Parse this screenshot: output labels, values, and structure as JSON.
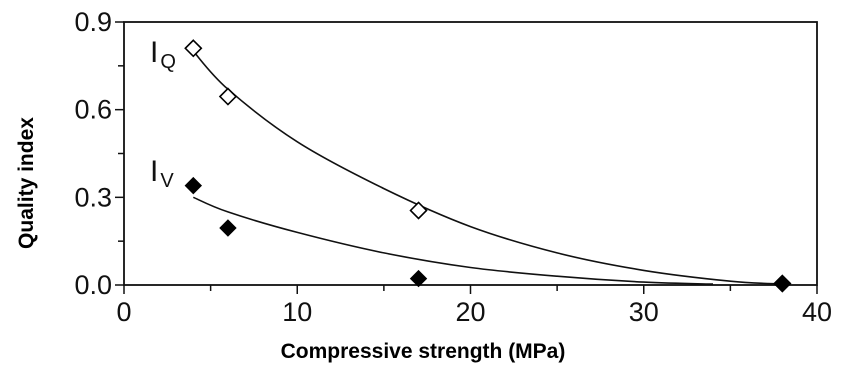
{
  "chart_data": {
    "type": "scatter",
    "title": "",
    "xlabel": "Compressive strength (MPa)",
    "ylabel": "Quality index",
    "xlim": [
      0,
      40
    ],
    "ylim": [
      0,
      0.9
    ],
    "xticks": [
      0,
      10,
      20,
      30,
      40
    ],
    "xtick_labels": [
      "0",
      "10",
      "20",
      "30",
      "40"
    ],
    "yticks": [
      0,
      0.3,
      0.6,
      0.9
    ],
    "ytick_labels": [
      "0.0",
      "0.3",
      "0.6",
      "0.9"
    ],
    "grid": false,
    "series": [
      {
        "label_main": "I",
        "label_sub": "Q",
        "marker": "open-diamond",
        "x": [
          4,
          6,
          17,
          38
        ],
        "y": [
          0.81,
          0.645,
          0.255,
          0.005
        ],
        "trend_x": [
          4,
          6,
          10,
          15,
          20,
          25,
          30,
          35,
          38
        ],
        "trend_y": [
          0.8,
          0.67,
          0.49,
          0.33,
          0.2,
          0.11,
          0.05,
          0.013,
          0.003
        ]
      },
      {
        "label_main": "I",
        "label_sub": "V",
        "marker": "filled-diamond",
        "x": [
          4,
          6,
          17,
          38
        ],
        "y": [
          0.34,
          0.195,
          0.022,
          0.005
        ],
        "trend_x": [
          4,
          6,
          10,
          15,
          20,
          25,
          30,
          34
        ],
        "trend_y": [
          0.3,
          0.25,
          0.18,
          0.11,
          0.06,
          0.03,
          0.01,
          0.003
        ]
      }
    ]
  }
}
